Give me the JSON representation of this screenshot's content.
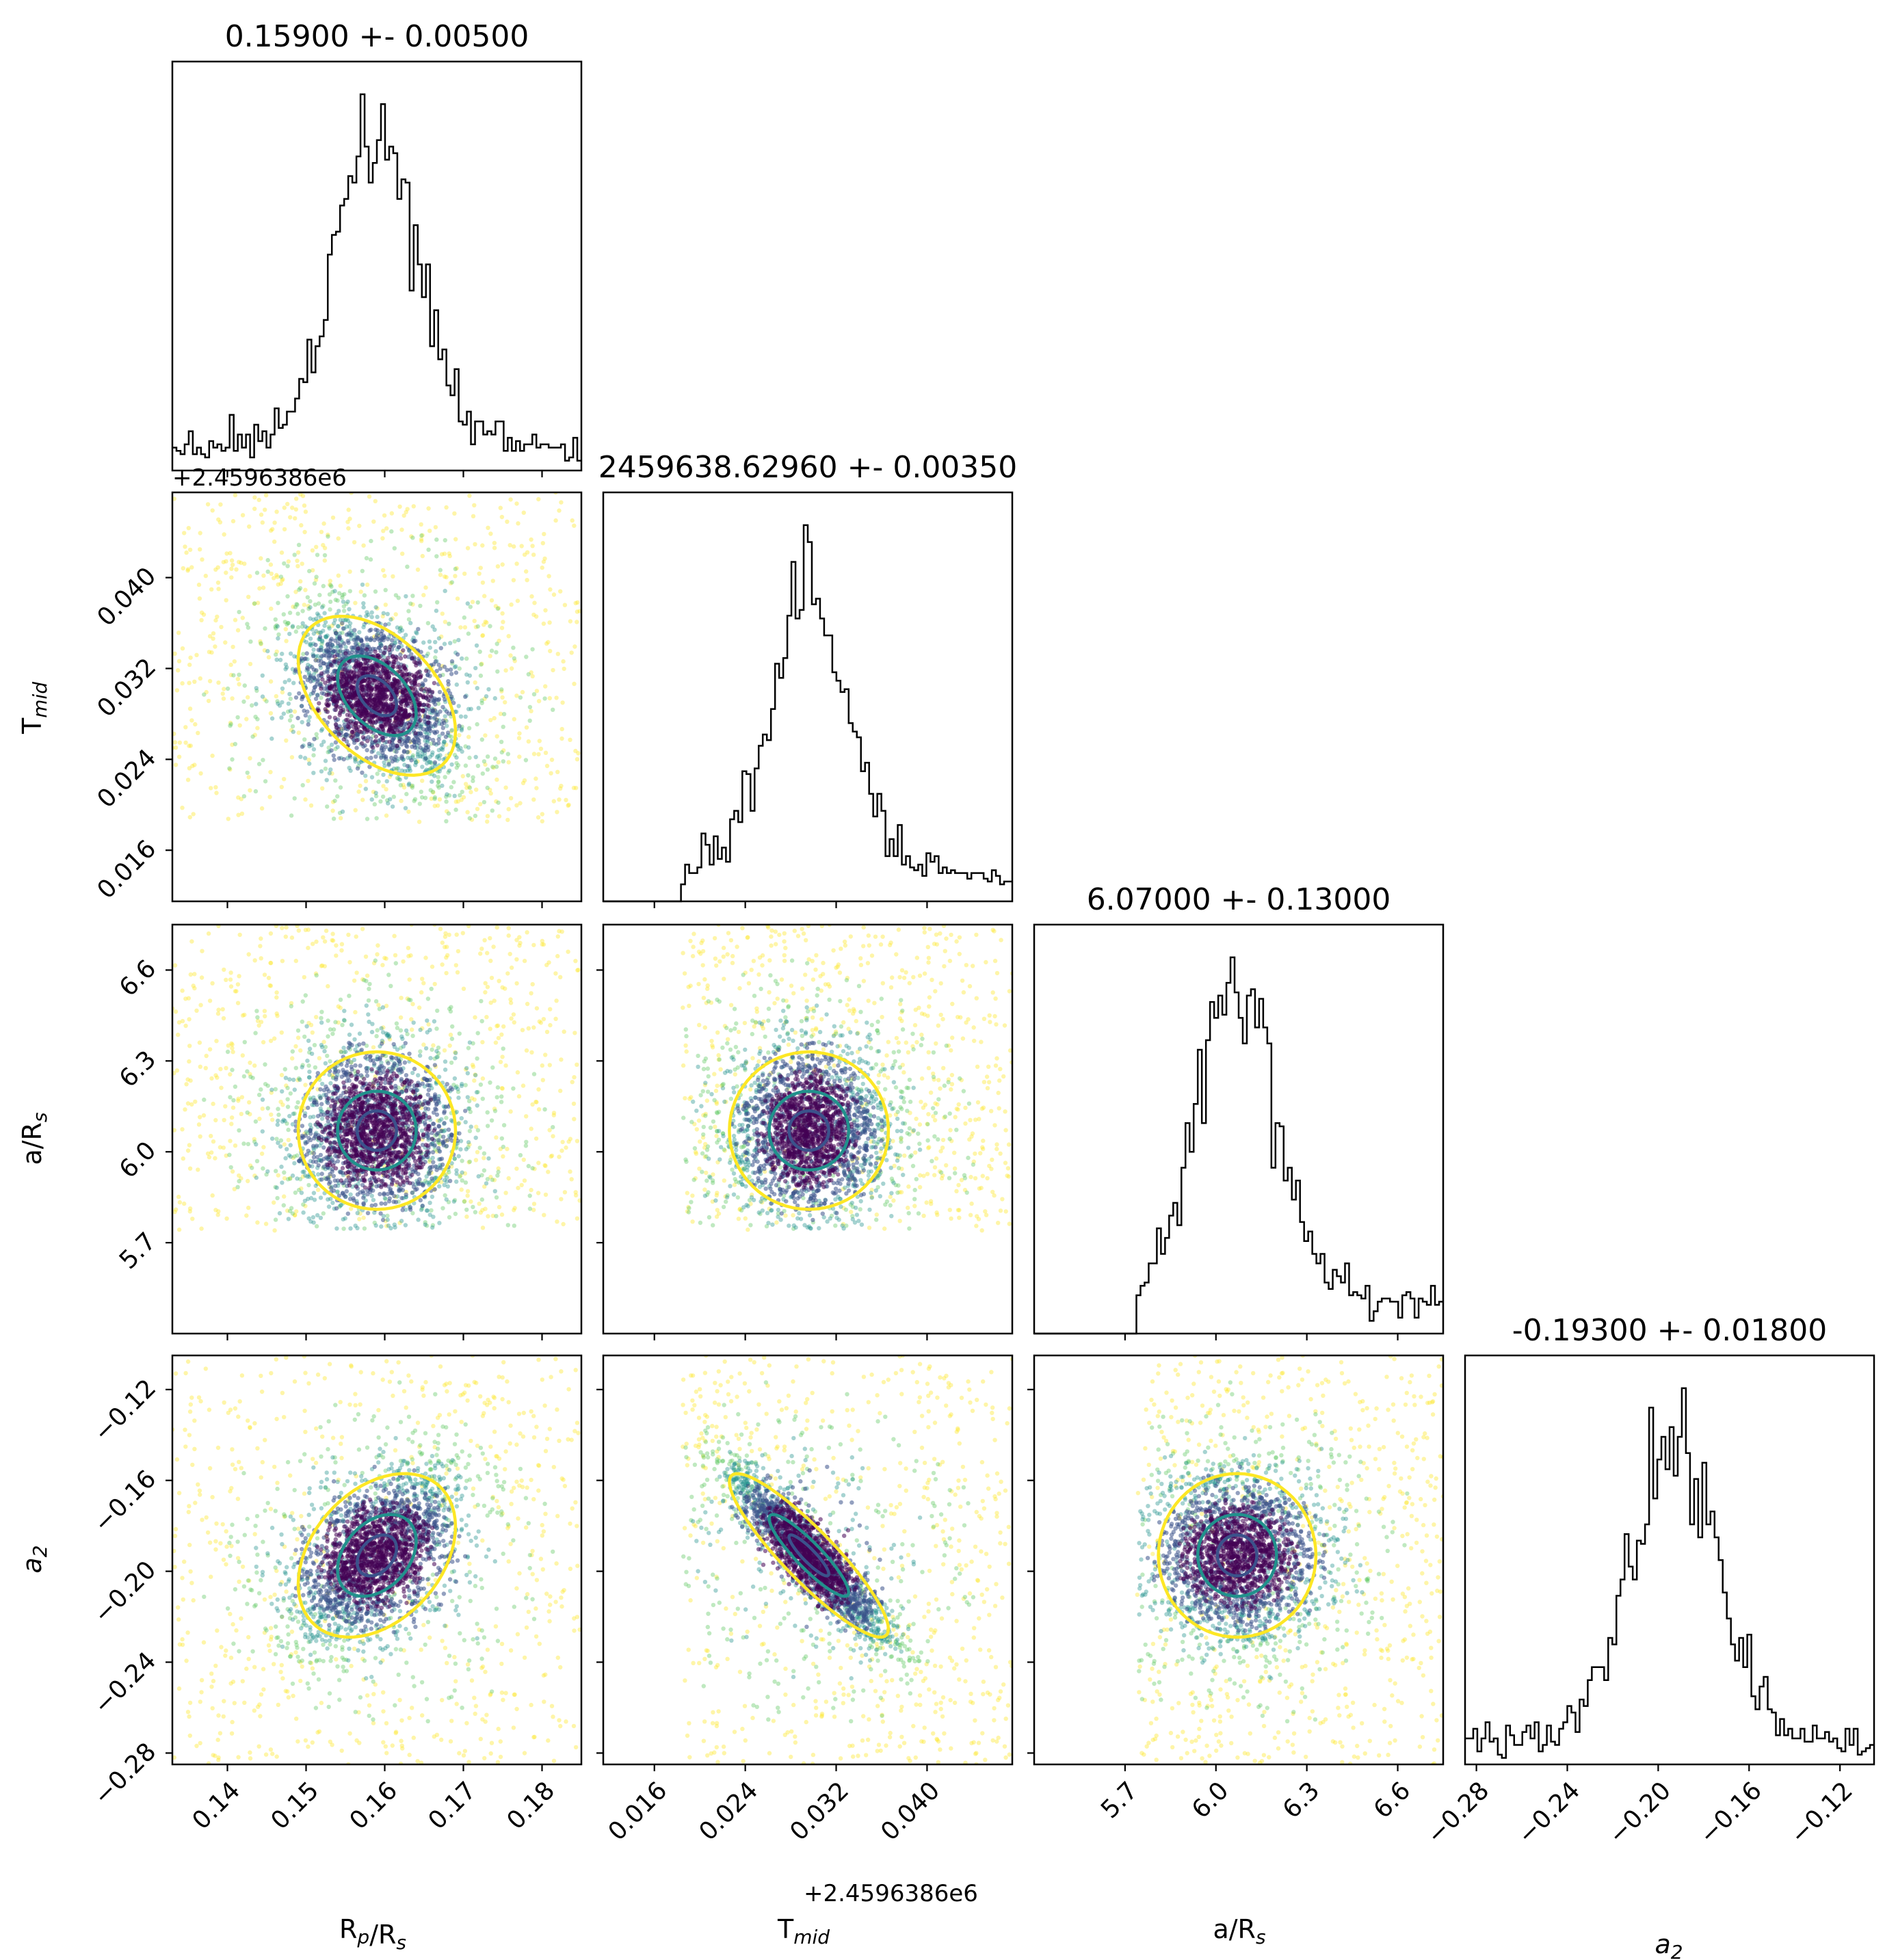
{
  "chart_data": {
    "type": "scatter",
    "kind": "corner-plot",
    "params": [
      {
        "key": "rp",
        "label": "R",
        "label_sub": "p",
        "label_rest": "/R",
        "label_sub2": "s",
        "title": "0.15900 +- 0.00500",
        "center": 0.159,
        "sigma": 0.005,
        "range": [
          0.133,
          0.185
        ],
        "ticks": [
          "0.14",
          "0.15",
          "0.16",
          "0.17",
          "0.18"
        ],
        "tick_values": [
          0.14,
          0.15,
          0.16,
          0.17,
          0.18
        ]
      },
      {
        "key": "tmid",
        "label": "T",
        "label_sub": "mid",
        "label_rest": "",
        "label_sub2": "",
        "title": "2459638.62960 +- 0.00350",
        "center": 0.0296,
        "sigma": 0.0035,
        "range": [
          0.0115,
          0.0475
        ],
        "offset_label": "+2.4596386e6",
        "ticks": [
          "0.016",
          "0.024",
          "0.032",
          "0.040"
        ],
        "tick_values": [
          0.016,
          0.024,
          0.032,
          0.04
        ]
      },
      {
        "key": "ars",
        "label": "a/R",
        "label_sub": "s",
        "label_rest": "",
        "label_sub2": "",
        "title": "6.07000 +- 0.13000",
        "center": 6.07,
        "sigma": 0.13,
        "range": [
          5.4,
          6.75
        ],
        "ticks": [
          "5.7",
          "6.0",
          "6.3",
          "6.6"
        ],
        "tick_values": [
          5.7,
          6.0,
          6.3,
          6.6
        ]
      },
      {
        "key": "a2",
        "label": "a",
        "label_sub": "2",
        "label_rest": "",
        "label_sub2": "",
        "italic": true,
        "title": "-0.19300 +- 0.01800",
        "center": -0.193,
        "sigma": 0.018,
        "range": [
          -0.285,
          -0.105
        ],
        "ticks": [
          "−0.28",
          "−0.24",
          "−0.20",
          "−0.16",
          "−0.12"
        ],
        "tick_values": [
          -0.28,
          -0.24,
          -0.2,
          -0.16,
          -0.12
        ]
      }
    ],
    "sample_bounds": {
      "rp": [
        0.133,
        0.185
      ],
      "tmid": [
        0.0185,
        0.0475
      ],
      "ars": [
        5.74,
        6.75
      ],
      "a2": [
        -0.285,
        -0.105
      ]
    },
    "correlations": {
      "rp_tmid": -0.45,
      "rp_ars": 0.0,
      "tmid_ars": 0.0,
      "rp_a2": 0.35,
      "tmid_a2": -0.9,
      "ars_a2": 0.0
    },
    "histogram_bins": 100,
    "contour_levels": [
      0.5,
      1.0,
      2.0
    ],
    "colors": {
      "scatter_cmap": [
        "#440154",
        "#3b528b",
        "#21918c",
        "#5ec962",
        "#fde725"
      ],
      "contour_inner": "#3b528b",
      "contour_mid": "#21918c",
      "contour_outer": "#fde725",
      "hist_line": "#000000",
      "axes": "#000000"
    },
    "grid": false
  }
}
